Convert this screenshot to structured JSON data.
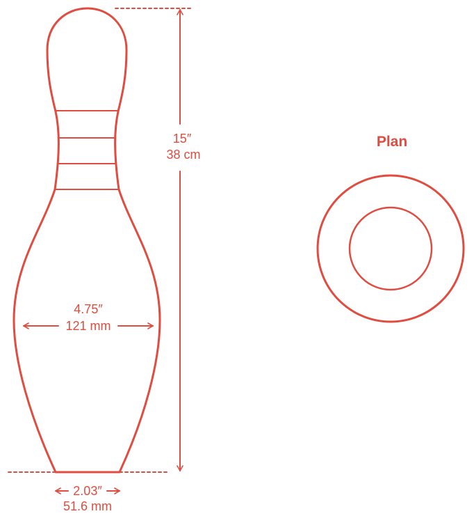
{
  "colors": {
    "stroke": "#e04c40",
    "background": "#ffffff"
  },
  "height": {
    "imperial": "15″",
    "metric": "38 cm"
  },
  "belly_width": {
    "imperial": "4.75″",
    "metric": "121 mm"
  },
  "base_width": {
    "imperial": "2.03″",
    "metric": "51.6 mm"
  },
  "plan": {
    "title": "Plan"
  },
  "icons": {
    "arrow_left": "left-arrow-icon",
    "arrow_right": "right-arrow-icon"
  }
}
